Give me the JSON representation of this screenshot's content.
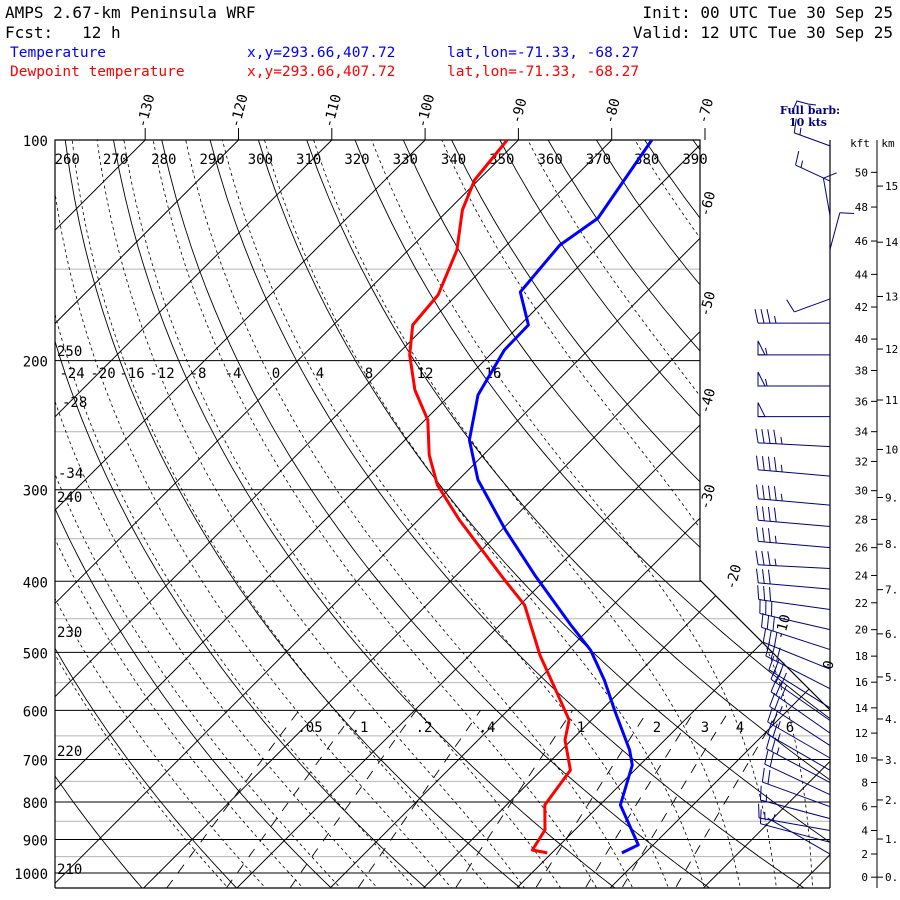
{
  "header": {
    "title": "AMPS 2.67-km Peninsula WRF",
    "forecast": "Fcst:   12 h",
    "init": "Init: 00 UTC Tue 30 Sep 25",
    "valid": "Valid: 12 UTC Tue 30 Sep 25"
  },
  "legend": [
    {
      "name": "Temperature",
      "xy": "x,y=293.66,407.72",
      "latlon": "lat,lon=-71.33, -68.27",
      "color": "#0000ff"
    },
    {
      "name": "Dewpoint temperature",
      "xy": "x,y=293.66,407.72",
      "latlon": "lat,lon=-71.33, -68.27",
      "color": "#ff0000"
    }
  ],
  "wind_legend": {
    "line1": "Full barb:",
    "line2": "10 kts",
    "color": "#000080"
  },
  "chart_data": {
    "type": "line",
    "subtype": "skew-T log-P",
    "ylabel": "Pressure (hPa)",
    "pressure_ticks": [
      100,
      200,
      300,
      400,
      500,
      600,
      700,
      800,
      900,
      1000
    ],
    "isotherm_labels_top": [
      "-130",
      "-120",
      "-110",
      "-100",
      "-90",
      "-80",
      "-70"
    ],
    "isotherm_labels_right": [
      "-60",
      "-50",
      "-40",
      "-30",
      "-20",
      "-10",
      "0"
    ],
    "theta_labels_top": [
      "260",
      "270",
      "280",
      "290",
      "300",
      "310",
      "320",
      "330",
      "340",
      "350",
      "360",
      "370",
      "380",
      "390"
    ],
    "theta_labels_left": [
      "250",
      "240",
      "230",
      "220",
      "210"
    ],
    "moist_labels": [
      "-24",
      "-20",
      "-16",
      "-12",
      "-8",
      "-4",
      "0",
      "4",
      "8",
      "12",
      "16"
    ],
    "moist_labels_left": [
      "-28",
      "-34"
    ],
    "mixing_ratio_labels": [
      ".05",
      ".1",
      ".2",
      ".4",
      "1",
      "2",
      "3",
      "4",
      "6"
    ],
    "mixing_ratio_values": [
      0.05,
      0.1,
      0.2,
      0.4,
      1,
      2,
      3,
      4,
      6
    ],
    "height_axis": {
      "kft_title": "kft",
      "km_title": "km",
      "kft_labels": [
        "0",
        "2",
        "4",
        "6",
        "8",
        "10",
        "12",
        "14",
        "16",
        "18",
        "20",
        "22",
        "24",
        "26",
        "28",
        "30",
        "32",
        "34",
        "36",
        "38",
        "40",
        "42",
        "44",
        "46",
        "48",
        "50"
      ],
      "km_labels": [
        "0.",
        "1.",
        "2.",
        "3.",
        "4.",
        "5.",
        "6.",
        "7.",
        "8.",
        "9.",
        "10.",
        "11.",
        "12.",
        "13.",
        "14.",
        "15."
      ]
    },
    "series": [
      {
        "name": "Temperature",
        "color": "#0000ff",
        "pressure": [
          100,
          115.2,
          127.8,
          139.1,
          161.2,
          178.8,
          193.4,
          222.8,
          256.6,
          290.9,
          340.4,
          392.3,
          458.8,
          496.4,
          545.5,
          599.3,
          679.6,
          712.4,
          807.6,
          915.5,
          938.7
        ],
        "temperature": [
          -75.7,
          -74.2,
          -73.1,
          -74.3,
          -73.5,
          -69.1,
          -69.0,
          -67.0,
          -63.1,
          -57.9,
          -49.6,
          -41.6,
          -32.4,
          -27.6,
          -22.9,
          -18.6,
          -12.7,
          -10.8,
          -7.8,
          -1.6,
          -2.5
        ]
      },
      {
        "name": "Dewpoint temperature",
        "color": "#ff0000",
        "pressure": [
          100,
          113.4,
          124.6,
          141.3,
          162.7,
          178.8,
          196.5,
          219.3,
          241.0,
          269.0,
          295.6,
          329.9,
          398.5,
          430.9,
          504.2,
          580.7,
          618.4,
          658.5,
          723.7,
          807.6,
          873.5,
          930.3,
          938.7
        ],
        "temperature": [
          -91.2,
          -90.4,
          -88.5,
          -84.8,
          -82.0,
          -81.5,
          -78.6,
          -74.3,
          -69.7,
          -65.8,
          -61.7,
          -55.6,
          -44.3,
          -39.5,
          -32.5,
          -25.5,
          -22.4,
          -20.7,
          -16.9,
          -15.9,
          -13.2,
          -12.4,
          -10.5
        ]
      }
    ],
    "winds": [
      {
        "kft": 51.5,
        "dir": 290,
        "kts": 15
      },
      {
        "kft": 49.5,
        "dir": 295,
        "kts": 15
      },
      {
        "kft": 47.5,
        "dir": 350,
        "kts": 10
      },
      {
        "kft": 45.5,
        "dir": 15,
        "kts": 10
      },
      {
        "kft": 42.5,
        "dir": 250,
        "kts": 10
      },
      {
        "kft": 41,
        "dir": 270,
        "kts": 35
      },
      {
        "kft": 39,
        "dir": 270,
        "kts": 55
      },
      {
        "kft": 37,
        "dir": 270,
        "kts": 55
      },
      {
        "kft": 35,
        "dir": 270,
        "kts": 50
      },
      {
        "kft": 33,
        "dir": 273,
        "kts": 45
      },
      {
        "kft": 31,
        "dir": 275,
        "kts": 45
      },
      {
        "kft": 29,
        "dir": 275,
        "kts": 45
      },
      {
        "kft": 27.5,
        "dir": 275,
        "kts": 40
      },
      {
        "kft": 26,
        "dir": 275,
        "kts": 35
      },
      {
        "kft": 24.5,
        "dir": 273,
        "kts": 35
      },
      {
        "kft": 23,
        "dir": 275,
        "kts": 30
      },
      {
        "kft": 21.5,
        "dir": 278,
        "kts": 30
      },
      {
        "kft": 20,
        "dir": 283,
        "kts": 30
      },
      {
        "kft": 18.5,
        "dir": 288,
        "kts": 30
      },
      {
        "kft": 17,
        "dir": 292,
        "kts": 30
      },
      {
        "kft": 15.5,
        "dir": 297,
        "kts": 30
      },
      {
        "kft": 14,
        "dir": 302,
        "kts": 30
      },
      {
        "kft": 13,
        "dir": 305,
        "kts": 30
      },
      {
        "kft": 12,
        "dir": 305,
        "kts": 30
      },
      {
        "kft": 11,
        "dir": 303,
        "kts": 25
      },
      {
        "kft": 10,
        "dir": 300,
        "kts": 25
      },
      {
        "kft": 9,
        "dir": 300,
        "kts": 25
      },
      {
        "kft": 8,
        "dir": 298,
        "kts": 25
      },
      {
        "kft": 7,
        "dir": 295,
        "kts": 20
      },
      {
        "kft": 6,
        "dir": 290,
        "kts": 20
      },
      {
        "kft": 5,
        "dir": 285,
        "kts": 15
      },
      {
        "kft": 4,
        "dir": 280,
        "kts": 15
      },
      {
        "kft": 3,
        "dir": 285,
        "kts": 10
      },
      {
        "kft": 2,
        "dir": 300,
        "kts": 5
      }
    ]
  }
}
